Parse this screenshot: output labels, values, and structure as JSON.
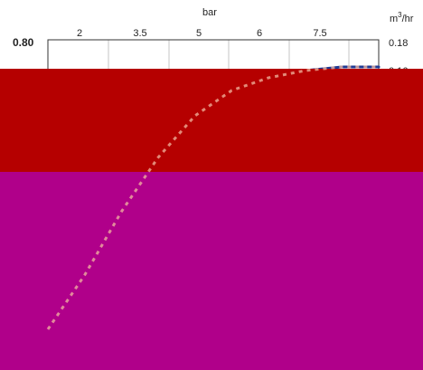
{
  "chart_data": {
    "type": "line",
    "top_axis": {
      "title": "bar",
      "ticks": [
        "2",
        "3.5",
        "5",
        "6",
        "7.5"
      ],
      "range": [
        0,
        9
      ]
    },
    "left_axis": {
      "visible_ticks": [
        "0.80"
      ]
    },
    "right_axis": {
      "title_prefix": "m",
      "title_sup": "3",
      "title_suffix": "/hr",
      "visible_ticks": [
        "0.18",
        "0.16"
      ]
    },
    "series": [
      {
        "color": "#1f3a93",
        "x": [
          0,
          1,
          2,
          3,
          4,
          5,
          6,
          7,
          8,
          9
        ],
        "y": [
          0.02,
          0.05,
          0.085,
          0.115,
          0.138,
          0.152,
          0.159,
          0.163,
          0.165,
          0.165
        ]
      }
    ],
    "y_range": [
      0.0,
      0.18
    ],
    "grid": "vertical",
    "colors": {
      "obscured_band_upper": "#b50000",
      "obscured_band_lower": "#b0008a",
      "line": "#1f3a93"
    }
  }
}
